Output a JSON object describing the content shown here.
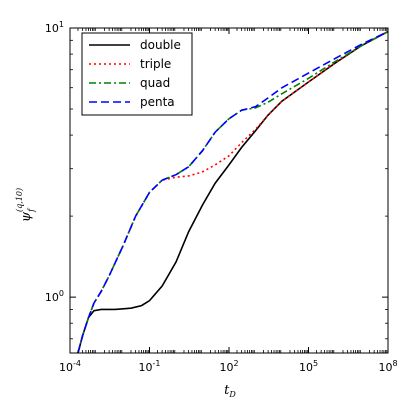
{
  "chart_data": {
    "type": "line",
    "x_scale": "log",
    "y_scale": "log",
    "xlim": [
      0.0001,
      100000000
    ],
    "ylim": [
      0.62,
      10
    ],
    "x_ticks": [
      {
        "value": 0.0001,
        "base": "10",
        "exp": "-4"
      },
      {
        "value": 0.1,
        "base": "10",
        "exp": "-1"
      },
      {
        "value": 100,
        "base": "10",
        "exp": "2"
      },
      {
        "value": 100000,
        "base": "10",
        "exp": "5"
      },
      {
        "value": 100000000,
        "base": "10",
        "exp": "8"
      }
    ],
    "y_ticks": [
      {
        "value": 1,
        "base": "10",
        "exp": "0"
      },
      {
        "value": 10,
        "base": "10",
        "exp": "1"
      }
    ],
    "xlabel": {
      "main": "t",
      "sub": "D"
    },
    "ylabel": {
      "main": "ψ",
      "sub": "f",
      "sup": "(q,10)"
    },
    "legend_position": "top-left",
    "grid": false,
    "series": [
      {
        "name": "double",
        "color": "#000000",
        "style": "solid",
        "points": [
          [
            0.0002,
            0.62
          ],
          [
            0.0003,
            0.72
          ],
          [
            0.0005,
            0.84
          ],
          [
            0.0008,
            0.89
          ],
          [
            0.0015,
            0.9
          ],
          [
            0.005,
            0.9
          ],
          [
            0.02,
            0.91
          ],
          [
            0.05,
            0.93
          ],
          [
            0.1,
            0.97
          ],
          [
            0.3,
            1.1
          ],
          [
            1,
            1.35
          ],
          [
            3,
            1.75
          ],
          [
            10,
            2.2
          ],
          [
            30,
            2.65
          ],
          [
            100,
            3.1
          ],
          [
            300,
            3.6
          ],
          [
            1000,
            4.15
          ],
          [
            3000,
            4.75
          ],
          [
            10000,
            5.35
          ],
          [
            100000,
            6.3
          ],
          [
            1000000,
            7.4
          ],
          [
            10000000,
            8.6
          ],
          [
            100000000,
            9.7
          ]
        ]
      },
      {
        "name": "triple",
        "color": "#ff0000",
        "style": "dotted",
        "points": [
          [
            0.0002,
            0.62
          ],
          [
            0.0003,
            0.72
          ],
          [
            0.0005,
            0.84
          ],
          [
            0.0008,
            0.95
          ],
          [
            0.0015,
            1.05
          ],
          [
            0.003,
            1.2
          ],
          [
            0.01,
            1.55
          ],
          [
            0.03,
            2.0
          ],
          [
            0.1,
            2.45
          ],
          [
            0.3,
            2.72
          ],
          [
            1,
            2.79
          ],
          [
            3,
            2.82
          ],
          [
            10,
            2.92
          ],
          [
            30,
            3.1
          ],
          [
            100,
            3.35
          ],
          [
            300,
            3.75
          ],
          [
            1000,
            4.2
          ],
          [
            3000,
            4.75
          ],
          [
            10000,
            5.35
          ],
          [
            100000,
            6.3
          ],
          [
            1000000,
            7.4
          ],
          [
            10000000,
            8.6
          ],
          [
            100000000,
            9.7
          ]
        ]
      },
      {
        "name": "quad",
        "color": "#008000",
        "style": "dashdot",
        "points": [
          [
            0.0002,
            0.62
          ],
          [
            0.0003,
            0.72
          ],
          [
            0.0005,
            0.84
          ],
          [
            0.0008,
            0.95
          ],
          [
            0.0015,
            1.05
          ],
          [
            0.003,
            1.2
          ],
          [
            0.01,
            1.55
          ],
          [
            0.03,
            2.0
          ],
          [
            0.1,
            2.45
          ],
          [
            0.3,
            2.72
          ],
          [
            1,
            2.85
          ],
          [
            3,
            3.05
          ],
          [
            10,
            3.5
          ],
          [
            30,
            4.1
          ],
          [
            100,
            4.6
          ],
          [
            300,
            4.95
          ],
          [
            1000,
            5.05
          ],
          [
            3000,
            5.3
          ],
          [
            10000,
            5.7
          ],
          [
            100000,
            6.5
          ],
          [
            1000000,
            7.5
          ],
          [
            10000000,
            8.6
          ],
          [
            100000000,
            9.7
          ]
        ]
      },
      {
        "name": "penta",
        "color": "#0000ff",
        "style": "dashed",
        "points": [
          [
            0.0002,
            0.62
          ],
          [
            0.0003,
            0.72
          ],
          [
            0.0005,
            0.84
          ],
          [
            0.0008,
            0.95
          ],
          [
            0.0015,
            1.05
          ],
          [
            0.003,
            1.2
          ],
          [
            0.01,
            1.55
          ],
          [
            0.03,
            2.0
          ],
          [
            0.1,
            2.45
          ],
          [
            0.3,
            2.72
          ],
          [
            1,
            2.85
          ],
          [
            3,
            3.05
          ],
          [
            10,
            3.5
          ],
          [
            30,
            4.1
          ],
          [
            100,
            4.6
          ],
          [
            300,
            4.95
          ],
          [
            1000,
            5.1
          ],
          [
            3000,
            5.5
          ],
          [
            10000,
            6.0
          ],
          [
            100000,
            6.8
          ],
          [
            1000000,
            7.7
          ],
          [
            10000000,
            8.7
          ],
          [
            100000000,
            9.7
          ]
        ]
      }
    ]
  }
}
